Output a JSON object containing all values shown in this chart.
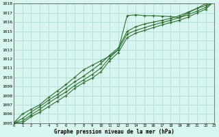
{
  "title": "Graphe pression niveau de la mer (hPa)",
  "background_color": "#d8f5f0",
  "grid_color": "#b0ddd8",
  "line_color": "#2d6e2d",
  "xlim": [
    0,
    23
  ],
  "ylim": [
    1005,
    1018
  ],
  "xticks": [
    0,
    1,
    2,
    3,
    4,
    5,
    6,
    7,
    8,
    9,
    10,
    11,
    12,
    13,
    14,
    15,
    16,
    17,
    18,
    19,
    20,
    21,
    22,
    23
  ],
  "yticks": [
    1005,
    1006,
    1007,
    1008,
    1009,
    1010,
    1011,
    1012,
    1013,
    1014,
    1015,
    1016,
    1017,
    1018
  ],
  "series": [
    [
      1005.0,
      1006.0,
      1006.5,
      1007.0,
      1007.8,
      1008.5,
      1009.2,
      1010.0,
      1010.8,
      1011.3,
      1011.8,
      1012.3,
      1013.0,
      1016.7,
      1016.8,
      1016.7,
      1016.7,
      1016.65,
      1016.6,
      1016.5,
      1017.0,
      1017.5,
      1018.0,
      1018.3
    ],
    [
      1005.0,
      1005.5,
      1006.2,
      1006.8,
      1007.5,
      1008.1,
      1008.8,
      1009.5,
      1010.1,
      1010.8,
      1011.5,
      1012.4,
      1013.2,
      1015.0,
      1015.5,
      1015.8,
      1016.0,
      1016.2,
      1016.4,
      1016.7,
      1017.1,
      1017.5,
      1017.8,
      1018.3
    ],
    [
      1005.0,
      1005.2,
      1005.9,
      1006.5,
      1007.2,
      1007.8,
      1008.4,
      1009.1,
      1009.7,
      1010.3,
      1011.0,
      1012.1,
      1013.0,
      1014.7,
      1015.1,
      1015.4,
      1015.7,
      1015.95,
      1016.2,
      1016.5,
      1016.8,
      1017.2,
      1017.6,
      1018.3
    ],
    [
      1005.0,
      1005.0,
      1005.7,
      1006.2,
      1006.8,
      1007.4,
      1008.0,
      1008.8,
      1009.4,
      1009.9,
      1010.6,
      1011.8,
      1012.7,
      1014.3,
      1014.8,
      1015.1,
      1015.4,
      1015.7,
      1015.95,
      1016.2,
      1016.55,
      1017.0,
      1017.4,
      1018.3
    ]
  ]
}
